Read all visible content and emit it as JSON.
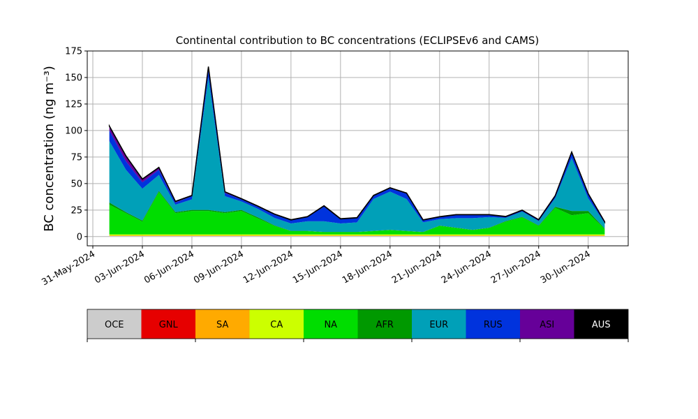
{
  "chart_data": {
    "type": "stacked_area",
    "title": "Continental contribution to BC concentrations (ECLIPSEv6 and CAMS)",
    "y_label": "BC concentration (ng m⁻³)",
    "x": [
      "2024-06-01",
      "2024-06-02",
      "2024-06-03",
      "2024-06-04",
      "2024-06-05",
      "2024-06-06",
      "2024-06-07",
      "2024-06-08",
      "2024-06-09",
      "2024-06-10",
      "2024-06-11",
      "2024-06-12",
      "2024-06-13",
      "2024-06-14",
      "2024-06-15",
      "2024-06-16",
      "2024-06-17",
      "2024-06-18",
      "2024-06-19",
      "2024-06-20",
      "2024-06-21",
      "2024-06-22",
      "2024-06-23",
      "2024-06-24",
      "2024-06-25",
      "2024-06-26",
      "2024-06-27",
      "2024-06-28",
      "2024-06-29",
      "2024-06-30",
      "2024-07-01"
    ],
    "xlim": [
      "2024-05-31",
      "2024-07-02"
    ],
    "xticks": [
      {
        "value": "2024-05-31",
        "label": "31-May-2024"
      },
      {
        "value": "2024-06-03",
        "label": "03-Jun-2024"
      },
      {
        "value": "2024-06-06",
        "label": "06-Jun-2024"
      },
      {
        "value": "2024-06-09",
        "label": "09-Jun-2024"
      },
      {
        "value": "2024-06-12",
        "label": "12-Jun-2024"
      },
      {
        "value": "2024-06-15",
        "label": "15-Jun-2024"
      },
      {
        "value": "2024-06-18",
        "label": "18-Jun-2024"
      },
      {
        "value": "2024-06-21",
        "label": "21-Jun-2024"
      },
      {
        "value": "2024-06-24",
        "label": "24-Jun-2024"
      },
      {
        "value": "2024-06-27",
        "label": "27-Jun-2024"
      },
      {
        "value": "2024-06-30",
        "label": "30-Jun-2024"
      }
    ],
    "ylim": [
      -8.7,
      175
    ],
    "yticks": [
      0,
      25,
      50,
      75,
      100,
      125,
      150,
      175
    ],
    "grid": true,
    "series": [
      {
        "name": "OCE",
        "color": "#cccccc",
        "values": [
          0.5,
          0.5,
          0.5,
          0.5,
          0.5,
          0.5,
          0.5,
          0.5,
          0.5,
          0.5,
          0.5,
          0.5,
          0.5,
          0.5,
          0.5,
          0.5,
          0.5,
          0.5,
          0.5,
          0.5,
          0.5,
          0.5,
          0.5,
          0.5,
          0.5,
          0.5,
          0.5,
          0.5,
          0.5,
          0.5,
          0.5
        ]
      },
      {
        "name": "GNL",
        "color": "#e60000",
        "values": [
          0.1,
          0.1,
          0.1,
          0.1,
          0.1,
          0.1,
          0.1,
          0.1,
          0.1,
          0.1,
          0.1,
          0.1,
          0.1,
          0.1,
          0.1,
          0.1,
          0.1,
          0.1,
          0.1,
          0.1,
          0.1,
          0.1,
          0.1,
          0.1,
          0.1,
          0.1,
          0.1,
          0.1,
          0.1,
          0.1,
          0.1
        ]
      },
      {
        "name": "SA",
        "color": "#ffaa00",
        "values": [
          0.5,
          0.5,
          0.5,
          0.5,
          0.5,
          0.5,
          0.5,
          0.5,
          0.5,
          0.5,
          0.5,
          0.5,
          0.5,
          0.5,
          0.5,
          0.5,
          0.5,
          0.5,
          0.5,
          0.5,
          0.5,
          0.5,
          0.5,
          0.5,
          0.5,
          0.5,
          0.5,
          0.5,
          0.5,
          0.5,
          0.5
        ]
      },
      {
        "name": "CA",
        "color": "#ccff00",
        "values": [
          1,
          1,
          1,
          1,
          1,
          1,
          1,
          1,
          1,
          1,
          1,
          1,
          1,
          1,
          1,
          1,
          1,
          1,
          1,
          1,
          1,
          1,
          1,
          1,
          1,
          1,
          1,
          1,
          1,
          1,
          1
        ]
      },
      {
        "name": "NA",
        "color": "#00dd00",
        "values": [
          28,
          20,
          12,
          40,
          20,
          22,
          22,
          20,
          22,
          15,
          8,
          3,
          3,
          2,
          2,
          2,
          3,
          4,
          3,
          2,
          8,
          6,
          4,
          6,
          12,
          16,
          8,
          25,
          18,
          20,
          5
        ]
      },
      {
        "name": "AFR",
        "color": "#009900",
        "values": [
          2,
          1,
          1,
          1,
          1,
          1,
          1,
          1,
          1,
          1,
          0.5,
          0.3,
          0.3,
          0.3,
          0.3,
          0.3,
          0.3,
          0.3,
          0.3,
          0.3,
          0.3,
          0.3,
          0.3,
          0.3,
          0.5,
          0.5,
          0.5,
          1,
          4,
          2,
          0.5
        ]
      },
      {
        "name": "EUR",
        "color": "#00a0b8",
        "values": [
          58,
          40,
          30,
          15,
          7,
          10,
          125,
          15,
          8,
          8,
          7,
          7,
          9,
          10,
          8,
          9,
          30,
          36,
          30,
          9,
          6,
          9,
          11,
          10,
          3,
          5,
          4,
          8,
          50,
          12,
          5
        ]
      },
      {
        "name": "RUS",
        "color": "#0033dd",
        "values": [
          10,
          8,
          6,
          5,
          2,
          3,
          8,
          3,
          2,
          2,
          3,
          3,
          4,
          14,
          4,
          4,
          3,
          3,
          5,
          2,
          2,
          3,
          3,
          2,
          1,
          1,
          1,
          2,
          5,
          4,
          1
        ]
      },
      {
        "name": "ASI",
        "color": "#660099",
        "values": [
          4,
          5,
          3,
          2,
          1,
          0.5,
          2,
          1,
          0.5,
          0.5,
          0.5,
          0.3,
          0.3,
          0.5,
          0.3,
          0.3,
          0.3,
          0.5,
          0.5,
          0.2,
          0.2,
          0.2,
          0.2,
          0.2,
          0.2,
          0.2,
          0.2,
          0.3,
          0.5,
          0.3,
          0.2
        ]
      },
      {
        "name": "AUS",
        "color": "#000000",
        "values": [
          0.2,
          0.2,
          0.2,
          0.2,
          0.2,
          0.2,
          0.2,
          0.2,
          0.2,
          0.2,
          0.2,
          0.2,
          0.2,
          0.2,
          0.2,
          0.2,
          0.2,
          0.2,
          0.2,
          0.2,
          0.2,
          0.2,
          0.2,
          0.2,
          0.2,
          0.2,
          0.2,
          0.2,
          0.2,
          0.2,
          0.2
        ]
      }
    ]
  }
}
